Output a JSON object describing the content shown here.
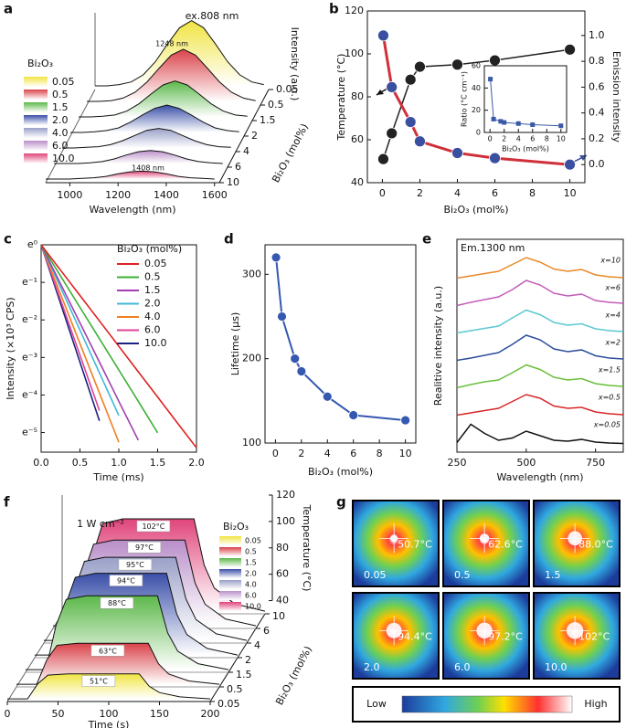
{
  "chart_data": [
    {
      "panel": "a",
      "type": "waterfall",
      "annotation": "ex.808 nm",
      "peak_labels": [
        "1248 nm",
        "1408 nm"
      ],
      "x_label": "Wavelength (nm)",
      "y_label": "Intensity (a.u.)",
      "z_label": "Bi₂O₃ (mol%)",
      "legend_title": "Bi₂O₃",
      "x": [
        900,
        950,
        1000,
        1050,
        1100,
        1150,
        1200,
        1250,
        1300,
        1350,
        1400,
        1450,
        1500,
        1550,
        1600
      ],
      "xlim": [
        900,
        1620
      ],
      "xticks": [
        1000,
        1200,
        1400,
        1600
      ],
      "ylim": [
        0,
        1.05
      ],
      "zticks": [
        0.05,
        0.5,
        1.5,
        2,
        4,
        6,
        10
      ],
      "series": [
        {
          "name": "0.05",
          "color": "#f0e442",
          "values": [
            0,
            0,
            0.02,
            0.06,
            0.17,
            0.37,
            0.64,
            0.89,
            1,
            0.89,
            0.64,
            0.37,
            0.17,
            0.06,
            0.02
          ]
        },
        {
          "name": "0.5",
          "color": "#d9434a",
          "values": [
            0,
            0,
            0.01,
            0.05,
            0.14,
            0.3,
            0.51,
            0.71,
            0.8,
            0.71,
            0.51,
            0.3,
            0.14,
            0.05,
            0.01
          ]
        },
        {
          "name": "1.5",
          "color": "#5cb84a",
          "values": [
            0,
            0,
            0.01,
            0.03,
            0.09,
            0.2,
            0.35,
            0.49,
            0.55,
            0.49,
            0.35,
            0.2,
            0.09,
            0.03,
            0.01
          ]
        },
        {
          "name": "2.0",
          "color": "#3a4fa8",
          "values": [
            0,
            0,
            0.01,
            0.03,
            0.07,
            0.16,
            0.27,
            0.37,
            0.42,
            0.37,
            0.27,
            0.16,
            0.07,
            0.03,
            0.01
          ]
        },
        {
          "name": "4.0",
          "color": "#9aa0c8",
          "values": [
            0,
            0,
            0.01,
            0.02,
            0.05,
            0.11,
            0.19,
            0.27,
            0.3,
            0.27,
            0.19,
            0.11,
            0.05,
            0.02,
            0.01
          ]
        },
        {
          "name": "6.0",
          "color": "#b98fc9",
          "values": [
            0,
            0,
            0,
            0.01,
            0.03,
            0.07,
            0.13,
            0.18,
            0.2,
            0.18,
            0.13,
            0.07,
            0.03,
            0.01,
            0
          ]
        },
        {
          "name": "10.0",
          "color": "#e0457b",
          "values": [
            0,
            0,
            0,
            0.01,
            0.02,
            0.04,
            0.08,
            0.11,
            0.12,
            0.11,
            0.08,
            0.04,
            0.02,
            0.01,
            0
          ]
        }
      ]
    },
    {
      "panel": "b",
      "type": "dual",
      "x_label": "Bi₂O₃ (mol%)",
      "y_label": "Temperature (°C)",
      "y2_label": "Emission intensity",
      "x": [
        0.05,
        0.5,
        1.5,
        2,
        4,
        6,
        10
      ],
      "xlim": [
        -0.8,
        10.8
      ],
      "xticks": [
        0,
        2,
        4,
        6,
        8,
        10
      ],
      "ylim": [
        40,
        120
      ],
      "yticks": [
        40,
        60,
        80,
        100,
        120
      ],
      "y2lim": [
        -0.14,
        1.19
      ],
      "y2ticks": [
        {
          "value": 0,
          "label": "0.0"
        },
        0.2,
        0.4,
        0.6,
        0.8,
        {
          "value": 1,
          "label": "1.0"
        }
      ],
      "series": [
        {
          "color": "#222222",
          "values": [
            51,
            63,
            88,
            94,
            95,
            97,
            102
          ]
        },
        {
          "color": "#3a4fa0",
          "line_color": "#d0303a",
          "axis": "y2",
          "values": [
            1.0,
            0.6,
            0.33,
            0.18,
            0.09,
            0.05,
            0.0
          ]
        }
      ],
      "inset": {
        "x_label": "Bi₂O₃ (mol%)",
        "y_label": "Ratio (°C cm⁻¹)",
        "x": [
          0.05,
          0.5,
          1.5,
          2,
          4,
          6,
          10
        ],
        "values": [
          48,
          12,
          10,
          9,
          8,
          7,
          6
        ],
        "color": "#3a5aa8",
        "xlim": [
          -0.8,
          10.8
        ],
        "xticks": [
          0,
          2,
          4,
          6,
          8,
          10
        ],
        "ylim": [
          0,
          60
        ],
        "yticks": [
          0,
          20,
          40,
          60
        ]
      }
    },
    {
      "panel": "c",
      "type": "decay",
      "log_scale": true,
      "x_label": "Time (ms)",
      "y_label": "Intensity (×10³ CPS)",
      "legend_title": "Bi₂O₃ (mol%)",
      "x": [
        0,
        0.25,
        0.5,
        0.75,
        1,
        1.25,
        1.5,
        1.75,
        2
      ],
      "xlim": [
        0,
        2
      ],
      "xticks": [
        {
          "value": 0,
          "label": "0.0"
        },
        0.5,
        {
          "value": 1,
          "label": "1.0"
        },
        1.5,
        {
          "value": 2,
          "label": "2.0"
        }
      ],
      "ylim": [
        0.004,
        1
      ],
      "yticks": [
        {
          "value": 1,
          "label": "e⁰"
        },
        {
          "value": 0.3679,
          "label": "e⁻¹"
        },
        {
          "value": 0.1353,
          "label": "e⁻²"
        },
        {
          "value": 0.04979,
          "label": "e⁻³"
        },
        {
          "value": 0.01832,
          "label": "e⁻⁴"
        },
        {
          "value": 0.006738,
          "label": "e⁻⁵"
        }
      ],
      "series": [
        {
          "name": "0.05",
          "color": "#e02020",
          "values": [
            1,
            0.509,
            0.259,
            0.132,
            0.067,
            0.034,
            0.0174,
            0.0088,
            0.0045
          ]
        },
        {
          "name": "0.5",
          "color": "#3cb034",
          "values": [
            1,
            0.435,
            0.189,
            0.082,
            0.0357,
            0.0155,
            0.0067,
            null,
            null
          ]
        },
        {
          "name": "1.5",
          "color": "#a040b0",
          "values": [
            1,
            0.353,
            0.125,
            0.044,
            0.0155,
            0.0055,
            null,
            null,
            null
          ]
        },
        {
          "name": "2.0",
          "color": "#40b8d8",
          "values": [
            1,
            0.321,
            0.103,
            0.033,
            0.0106,
            null,
            null,
            null,
            null
          ]
        },
        {
          "name": "4.0",
          "color": "#f08020",
          "values": [
            1,
            0.268,
            0.072,
            0.0193,
            0.0052,
            null,
            null,
            null,
            null
          ]
        },
        {
          "name": "6.0",
          "color": "#e0409a",
          "values": [
            1,
            0.23,
            0.0528,
            0.0121,
            null,
            null,
            null,
            null,
            null
          ]
        },
        {
          "name": "10.0",
          "color": "#1a237e",
          "values": [
            1,
            0.21,
            0.0439,
            0.0092,
            null,
            null,
            null,
            null,
            null
          ]
        }
      ]
    },
    {
      "panel": "d",
      "type": "line",
      "x_label": "Bi₂O₃ (mol%)",
      "y_label": "Lifetime (μs)",
      "x": [
        0.05,
        0.5,
        1.5,
        2,
        4,
        6,
        10
      ],
      "values": [
        320,
        250,
        200,
        185,
        155,
        133,
        127
      ],
      "color": "#3558b0",
      "xlim": [
        -0.8,
        10.8
      ],
      "xticks": [
        0,
        2,
        4,
        6,
        8,
        10
      ],
      "ylim": [
        100,
        335
      ],
      "yticks": [
        100,
        200,
        300
      ]
    },
    {
      "panel": "e",
      "type": "stacked-spectra",
      "annotation": "Em.1300 nm",
      "x_label": "Wavelength (nm)",
      "y_label": "Realitive intensity (a.u.)",
      "x": [
        250,
        300,
        350,
        400,
        450,
        500,
        550,
        600,
        650,
        700,
        750,
        800,
        850
      ],
      "xlim": [
        250,
        850
      ],
      "xticks": [
        250,
        500,
        750
      ],
      "series": [
        {
          "name": "x=0.05",
          "color": "#111111",
          "values": [
            0.05,
            0.45,
            0.25,
            0.1,
            0.15,
            0.3,
            0.2,
            0.1,
            0.08,
            0.12,
            0.06,
            0.04,
            0.03
          ]
        },
        {
          "name": "x=0.5",
          "color": "#d62728",
          "values": [
            0.05,
            0.1,
            0.15,
            0.2,
            0.35,
            0.5,
            0.42,
            0.25,
            0.2,
            0.22,
            0.12,
            0.08,
            0.06
          ]
        },
        {
          "name": "x=1.5",
          "color": "#6abf3c",
          "values": [
            0.05,
            0.12,
            0.18,
            0.22,
            0.38,
            0.55,
            0.45,
            0.28,
            0.22,
            0.25,
            0.14,
            0.1,
            0.08
          ]
        },
        {
          "name": "x=2",
          "color": "#2b4f9b",
          "values": [
            0.05,
            0.1,
            0.16,
            0.22,
            0.4,
            0.6,
            0.5,
            0.3,
            0.24,
            0.28,
            0.15,
            0.1,
            0.08
          ]
        },
        {
          "name": "x=4",
          "color": "#5bc8d0",
          "values": [
            0.05,
            0.1,
            0.15,
            0.2,
            0.38,
            0.55,
            0.45,
            0.28,
            0.22,
            0.25,
            0.14,
            0.1,
            0.08
          ]
        },
        {
          "name": "x=6",
          "color": "#c45cb8",
          "values": [
            0.05,
            0.12,
            0.18,
            0.24,
            0.4,
            0.6,
            0.5,
            0.32,
            0.26,
            0.3,
            0.16,
            0.12,
            0.1
          ]
        },
        {
          "name": "x=10",
          "color": "#e8892b",
          "values": [
            0.05,
            0.1,
            0.15,
            0.2,
            0.35,
            0.5,
            0.4,
            0.25,
            0.2,
            0.24,
            0.12,
            0.08,
            0.06
          ]
        }
      ]
    },
    {
      "panel": "f",
      "type": "profile-waterfall",
      "annotation": "1 W cm⁻²",
      "x_label": "Time (s)",
      "y_label": "Temperature (°C)",
      "z_label": "Bi₂O₃ (mol%)",
      "legend_title": "Bi₂O₃",
      "x": [
        0,
        20,
        30,
        40,
        60,
        90,
        120,
        130,
        140,
        150,
        170,
        200
      ],
      "xlim": [
        0,
        200
      ],
      "xticks": [
        0,
        50,
        100,
        150,
        200
      ],
      "ylim": [
        30,
        120
      ],
      "yticks": [
        40,
        60,
        80,
        100,
        120
      ],
      "zticks": [
        0.05,
        0.5,
        1.5,
        2,
        4,
        6,
        10
      ],
      "series": [
        {
          "name": "0.05",
          "color": "#f0e442",
          "values": [
            32,
            32,
            43.4,
            50,
            51,
            51,
            51,
            51,
            41.5,
            36.8,
            33.5,
            32
          ],
          "value_labels": [
            null,
            null,
            null,
            null,
            null,
            "51°C",
            null,
            null,
            null,
            null,
            null,
            null
          ]
        },
        {
          "name": "0.5",
          "color": "#d9434a",
          "values": [
            32,
            32,
            50.6,
            61.5,
            63,
            63,
            63,
            63,
            47.5,
            39.8,
            34.5,
            32
          ],
          "value_labels": [
            null,
            null,
            null,
            null,
            null,
            "63°C",
            null,
            null,
            null,
            null,
            null,
            null
          ]
        },
        {
          "name": "1.5",
          "color": "#5cb84a",
          "values": [
            32,
            32,
            65.6,
            85.2,
            88,
            88,
            88,
            88,
            60,
            46,
            36.5,
            32
          ],
          "value_labels": [
            null,
            null,
            null,
            null,
            null,
            "88°C",
            null,
            null,
            null,
            null,
            null,
            null
          ]
        },
        {
          "name": "2.0",
          "color": "#3a4fa8",
          "values": [
            32,
            32,
            69.2,
            90.9,
            94,
            94,
            94,
            94,
            63,
            47.5,
            37,
            32
          ],
          "value_labels": [
            null,
            null,
            null,
            null,
            null,
            "94°C",
            null,
            null,
            null,
            null,
            null,
            null
          ]
        },
        {
          "name": "4.0",
          "color": "#9aa0c8",
          "values": [
            32,
            32,
            69.8,
            91.9,
            95,
            95,
            95,
            95,
            63.5,
            47.8,
            37,
            32
          ],
          "value_labels": [
            null,
            null,
            null,
            null,
            null,
            "95°C",
            null,
            null,
            null,
            null,
            null,
            null
          ]
        },
        {
          "name": "6.0",
          "color": "#b98fc9",
          "values": [
            32,
            32,
            71,
            93.8,
            97,
            97,
            97,
            97,
            64.5,
            48.3,
            37.2,
            32
          ],
          "value_labels": [
            null,
            null,
            null,
            null,
            null,
            "97°C",
            null,
            null,
            null,
            null,
            null,
            null
          ]
        },
        {
          "name": "10.0",
          "color": "#e0457b",
          "values": [
            32,
            32,
            74,
            98.5,
            102,
            102,
            102,
            102,
            67,
            49.5,
            37.6,
            32
          ],
          "value_labels": [
            null,
            null,
            null,
            null,
            null,
            "102°C",
            null,
            null,
            null,
            null,
            null,
            null
          ]
        }
      ]
    },
    {
      "panel": "g",
      "type": "thermal-images",
      "temps": [
        50.7,
        62.6,
        88.0,
        94.4,
        97.2,
        102
      ],
      "temp_labels": [
        "50.7°C",
        "62.6°C",
        "88.0°C",
        "94.4°C",
        "97.2°C",
        "102°C"
      ],
      "categories": [
        "0.05",
        "0.5",
        "1.5",
        "2.0",
        "6.0",
        "10.0"
      ],
      "colorbar_labels": [
        "Low",
        "High"
      ]
    }
  ]
}
